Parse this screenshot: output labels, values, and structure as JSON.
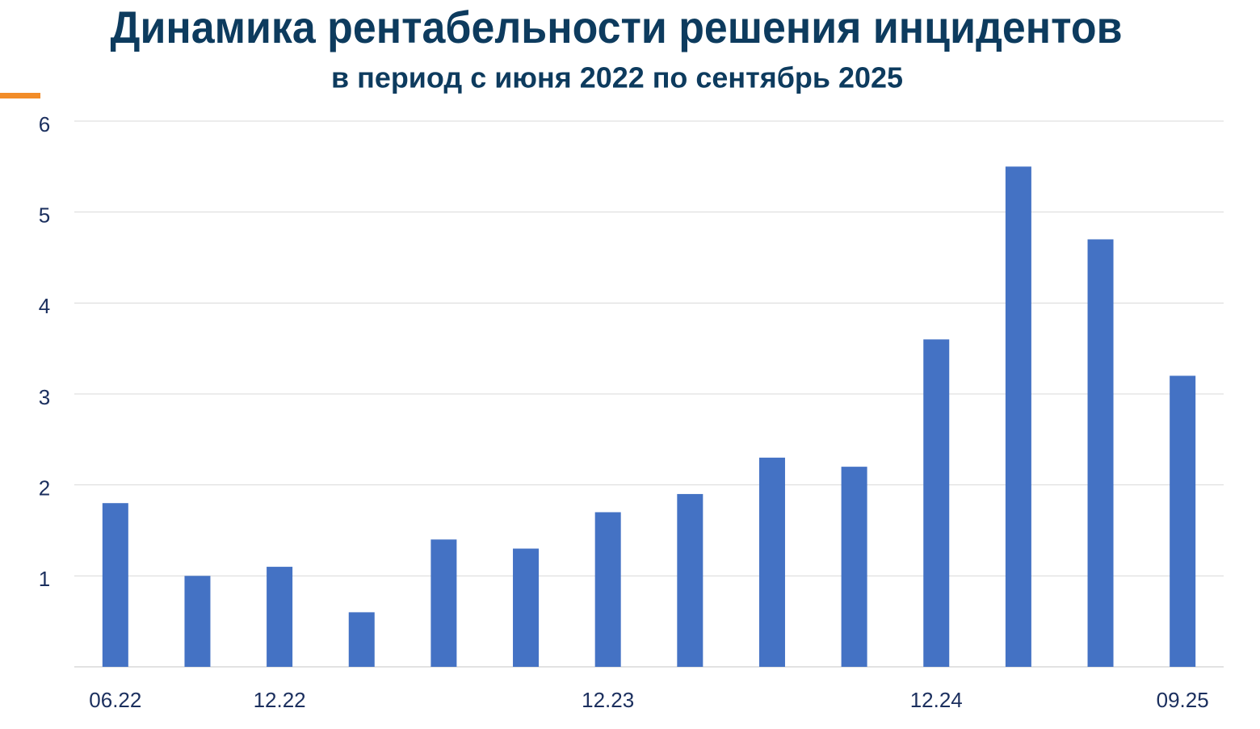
{
  "chart_data": {
    "type": "bar",
    "title": "Динамика рентабельности решения инцидентов",
    "subtitle": "в период с июня 2022 по сентябрь 2025",
    "categories": [
      "06.22",
      null,
      "12.22",
      null,
      null,
      null,
      "12.23",
      null,
      null,
      null,
      "12.24",
      null,
      null,
      "09.25"
    ],
    "values": [
      1.8,
      1.0,
      1.1,
      0.6,
      1.4,
      1.3,
      1.7,
      1.9,
      2.3,
      2.2,
      3.6,
      5.5,
      4.7,
      3.2
    ],
    "color": "#4472c4",
    "ylim": [
      0,
      6
    ],
    "yticks": [
      1,
      2,
      3,
      4,
      5,
      6
    ],
    "grid": true
  }
}
